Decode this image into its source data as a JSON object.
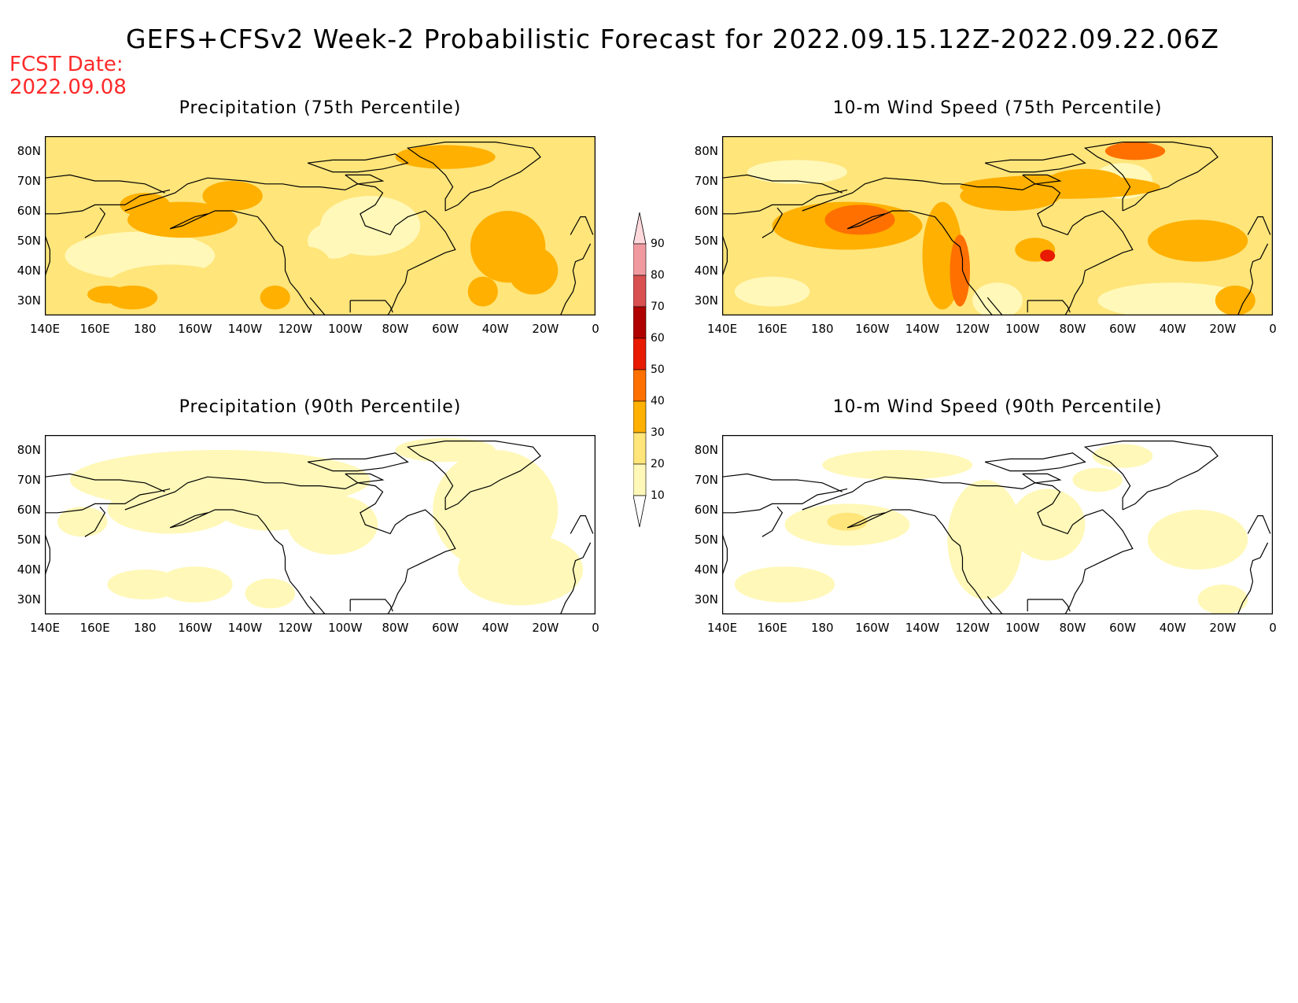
{
  "title": "GEFS+CFSv2 Week-2 Probabilistic Forecast for 2022.09.15.12Z-2022.09.22.06Z",
  "fcst_label": "FCST Date:",
  "fcst_date": "2022.09.08",
  "lat_ticks": [
    "80N",
    "70N",
    "60N",
    "50N",
    "40N",
    "30N"
  ],
  "lon_ticks": [
    "140E",
    "160E",
    "180",
    "160W",
    "140W",
    "120W",
    "100W",
    "80W",
    "60W",
    "40W",
    "20W",
    "0"
  ],
  "panels": [
    {
      "title": "Precipitation (75th Percentile)"
    },
    {
      "title": "10-m Wind Speed (75th Percentile)"
    },
    {
      "title": "Precipitation (90th Percentile)"
    },
    {
      "title": "10-m Wind Speed (90th Percentile)"
    }
  ],
  "colorbar": {
    "levels": [
      "10",
      "20",
      "30",
      "40",
      "50",
      "60",
      "70",
      "80",
      "90"
    ],
    "colors": [
      "#fff8b8",
      "#ffe57a",
      "#ffb000",
      "#ff7000",
      "#e81a00",
      "#b00000",
      "#d85050",
      "#f09aa0",
      "#ffd8dc"
    ]
  },
  "colors": {
    "fcst": "#ff2a2a",
    "coast": "#000000"
  },
  "extent": {
    "lon_min": 140,
    "lon_max": 360,
    "lat_min": 25,
    "lat_max": 85
  }
}
